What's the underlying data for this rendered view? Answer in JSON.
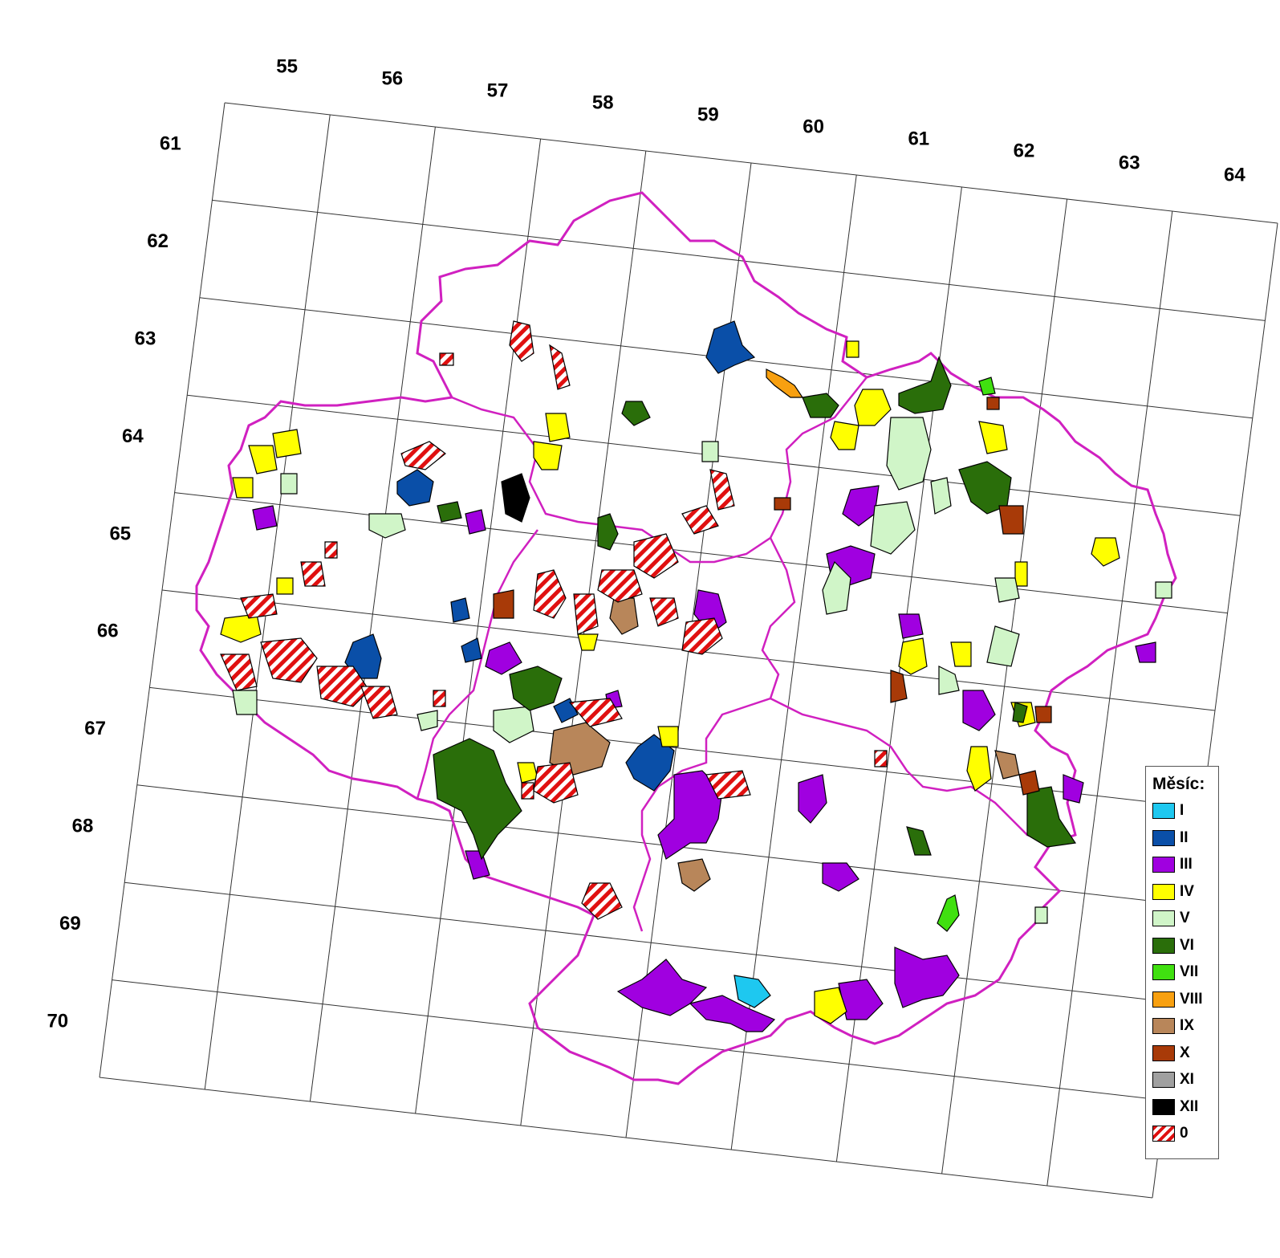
{
  "grid": {
    "top_labels": [
      "55",
      "56",
      "57",
      "58",
      "59",
      "60",
      "61",
      "62",
      "63",
      "64"
    ],
    "left_labels": [
      "61",
      "62",
      "63",
      "64",
      "65",
      "66",
      "67",
      "68",
      "69",
      "70"
    ]
  },
  "legend": {
    "title": "Měsíc:",
    "items": [
      {
        "label": "I",
        "color": "#1ec8f0"
      },
      {
        "label": "II",
        "color": "#0a4fa8"
      },
      {
        "label": "III",
        "color": "#a000e0"
      },
      {
        "label": "IV",
        "color": "#ffff00"
      },
      {
        "label": "V",
        "color": "#d0f5c8"
      },
      {
        "label": "VI",
        "color": "#2a6e0a"
      },
      {
        "label": "VII",
        "color": "#40e010"
      },
      {
        "label": "VIII",
        "color": "#f8a010"
      },
      {
        "label": "IX",
        "color": "#b8865a"
      },
      {
        "label": "X",
        "color": "#a83a08"
      },
      {
        "label": "XI",
        "color": "#a0a0a0"
      },
      {
        "label": "XII",
        "color": "#000000"
      },
      {
        "label": "0",
        "color": "hatch-red"
      }
    ]
  },
  "colors": {
    "region_border": "#d020c0",
    "grid_line": "#333333"
  }
}
